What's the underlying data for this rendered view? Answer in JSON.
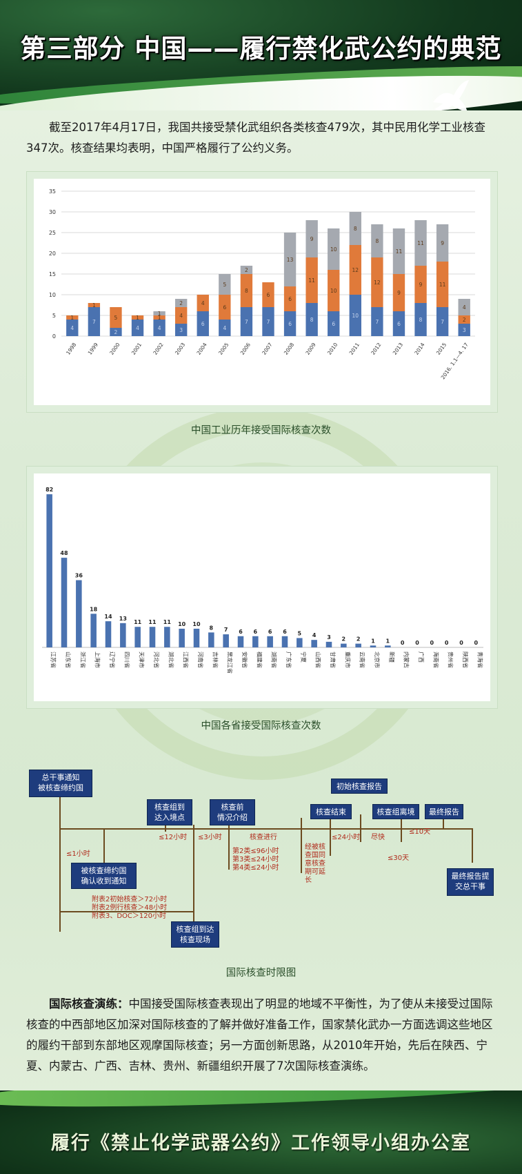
{
  "header": {
    "title": "第三部分   中国——履行禁化武公约的典范"
  },
  "intro": "截至2017年4月17日，我国共接受禁化武组织各类核查479次，其中民用化学工业核查347次。核查结果均表明，中国严格履行了公约义务。",
  "colors": {
    "blue": "#4a72b0",
    "orange": "#e07a3a",
    "gray": "#a5a9b0",
    "header_green": "#12381d",
    "box_blue": "#1e3c7d",
    "timeline_red": "#b02a1b"
  },
  "chart_data": [
    {
      "type": "bar",
      "stacked": true,
      "title": "中国工业历年接受国际核查次数",
      "categories": [
        "1998",
        "1999",
        "2000",
        "2001",
        "2002",
        "2003",
        "2004",
        "2005",
        "2006",
        "2007",
        "2008",
        "2009",
        "2010",
        "2011",
        "2012",
        "2013",
        "2014",
        "2015",
        "2016. 1.1—4. 17"
      ],
      "series": [
        {
          "color": "#4a72b0",
          "values": [
            4,
            7,
            2,
            4,
            4,
            3,
            6,
            4,
            7,
            7,
            6,
            8,
            6,
            10,
            7,
            6,
            8,
            7,
            3
          ]
        },
        {
          "color": "#e07a3a",
          "values": [
            1,
            1,
            5,
            1,
            1,
            4,
            4,
            6,
            8,
            6,
            6,
            11,
            10,
            12,
            12,
            9,
            9,
            11,
            2
          ]
        },
        {
          "color": "#a5a9b0",
          "values": [
            0,
            0,
            0,
            0,
            1,
            2,
            0,
            5,
            2,
            0,
            13,
            9,
            10,
            8,
            8,
            11,
            11,
            9,
            4
          ]
        }
      ],
      "ylim": [
        0,
        35
      ],
      "yticks": [
        0,
        5,
        10,
        15,
        20,
        25,
        30,
        35
      ],
      "grid": true
    },
    {
      "type": "bar",
      "title": "中国各省接受国际核查次数",
      "categories": [
        "江苏省",
        "山东省",
        "浙江省",
        "上海市",
        "辽宁省",
        "四川省",
        "天津市",
        "河北省",
        "湖北省",
        "江西省",
        "河南省",
        "吉林省",
        "黑龙江省",
        "安徽省",
        "福建省",
        "湖南省",
        "广东省",
        "宁夏",
        "山西省",
        "甘肃省",
        "重庆市",
        "云南省",
        "北京市",
        "新疆",
        "内蒙古",
        "广西",
        "海南省",
        "贵州省",
        "陕西省",
        "青海省"
      ],
      "values": [
        82,
        48,
        36,
        18,
        14,
        13,
        11,
        11,
        11,
        10,
        10,
        8,
        7,
        6,
        6,
        6,
        6,
        5,
        4,
        3,
        2,
        2,
        1,
        1,
        0,
        0,
        0,
        0,
        0,
        0
      ],
      "color": "#4a72b0",
      "ylim": [
        0,
        85
      ]
    }
  ],
  "timeline": {
    "caption": "国际核查时限图",
    "boxes": {
      "notify": "总干事通知\n被核查缔约国",
      "arrive_entry": "核查组到\n达入境点",
      "confirm": "被核查缔约国\n确认收到通知",
      "arrive_site": "核查组到达\n核查现场",
      "briefing": "核查前\n情况介绍",
      "end": "核查结束",
      "initial_report": "初始核查报告",
      "depart": "核查组离境",
      "final": "最终报告",
      "submit": "最终报告提\n交总干事"
    },
    "labels": {
      "one_hour": "≤1小时",
      "twelve": "≤12小时",
      "three": "≤3小时",
      "ongoing": "核查进行",
      "twentyfour": "≤24小时",
      "asap": "尽快",
      "ten_days": "≤10天",
      "thirty_days": "≤30天",
      "annex": "附表2初始核查＞72小时\n附表2例行核查＞48小时\n附表3、DOC＞120小时",
      "class": "第2类≤96小时\n第3类≤24小时\n第4类≤24小时",
      "extend": "经被核\n查国同\n意核查\n期可延\n长"
    }
  },
  "practice": {
    "lead": "国际核查演练：",
    "body": "中国接受国际核查表现出了明显的地域不平衡性，为了使从未接受过国际核查的中西部地区加深对国际核查的了解并做好准备工作，国家禁化武办一方面选调这些地区的履约干部到东部地区观摩国际核查；另一方面创新思路，从2010年开始，先后在陕西、宁夏、内蒙古、广西、吉林、贵州、新疆组织开展了7次国际核查演练。"
  },
  "footer": {
    "text": "履行《禁止化学武器公约》工作领导小组办公室"
  }
}
